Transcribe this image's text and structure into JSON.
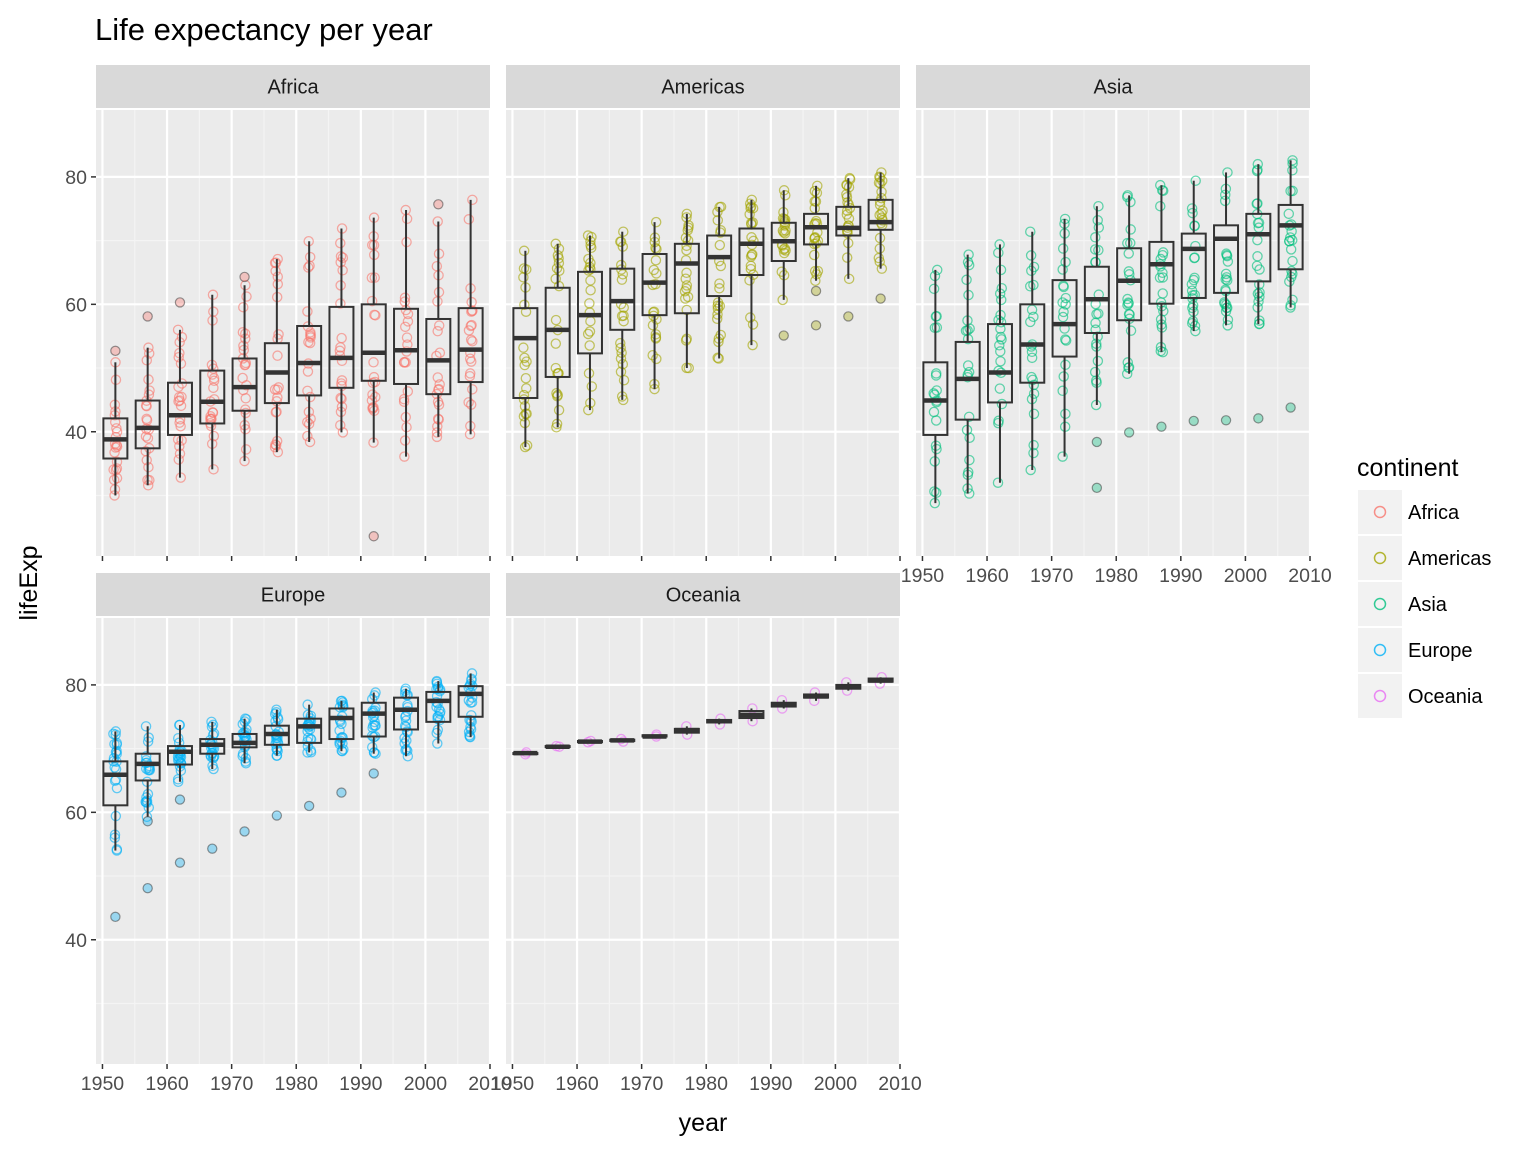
{
  "chart_data": {
    "type": "box",
    "title": "Life expectancy per year",
    "xlabel": "year",
    "ylabel": "lifeExp",
    "xlim": [
      1949,
      2010
    ],
    "ylim": [
      20.5,
      90.5
    ],
    "x_ticks": [
      1950,
      1960,
      1970,
      1980,
      1990,
      2000,
      2010
    ],
    "y_ticks": [
      40,
      60,
      80
    ],
    "grid": true,
    "legend": {
      "title": "continent",
      "position": "right",
      "entries": [
        "Africa",
        "Americas",
        "Asia",
        "Europe",
        "Oceania"
      ]
    },
    "colors": {
      "Africa": "#F8766D",
      "Americas": "#A3A500",
      "Asia": "#00BF7D",
      "Europe": "#00B0F6",
      "Oceania": "#E76BF3",
      "panel_bg": "#EBEBEB",
      "strip_bg": "#D9D9D9",
      "box_line": "#333333"
    },
    "years": [
      1952,
      1957,
      1962,
      1967,
      1972,
      1977,
      1982,
      1987,
      1992,
      1997,
      2002,
      2007
    ],
    "panels": [
      {
        "name": "Africa",
        "boxes": [
          {
            "year": 1952,
            "min": 30,
            "q1": 35.8,
            "median": 38.8,
            "q3": 42.1,
            "max": 50.9
          },
          {
            "year": 1957,
            "min": 31.6,
            "q1": 37.4,
            "median": 40.6,
            "q3": 44.9,
            "max": 53.2
          },
          {
            "year": 1962,
            "min": 32.8,
            "q1": 39.5,
            "median": 42.6,
            "q3": 47.7,
            "max": 56
          },
          {
            "year": 1967,
            "min": 34.1,
            "q1": 41.3,
            "median": 44.7,
            "q3": 49.6,
            "max": 61.5
          },
          {
            "year": 1972,
            "min": 35.4,
            "q1": 43.3,
            "median": 47,
            "q3": 51.5,
            "max": 63
          },
          {
            "year": 1977,
            "min": 36.8,
            "q1": 44.5,
            "median": 49.3,
            "q3": 53.9,
            "max": 67.1
          },
          {
            "year": 1982,
            "min": 38.4,
            "q1": 45.7,
            "median": 50.8,
            "q3": 56.6,
            "max": 69.9
          },
          {
            "year": 1987,
            "min": 39.9,
            "q1": 46.9,
            "median": 51.6,
            "q3": 59.6,
            "max": 71.9
          },
          {
            "year": 1992,
            "min": 38.3,
            "q1": 48,
            "median": 52.4,
            "q3": 60,
            "max": 73.6
          },
          {
            "year": 1997,
            "min": 36.1,
            "q1": 47.5,
            "median": 52.8,
            "q3": 59.3,
            "max": 74.8
          },
          {
            "year": 2002,
            "min": 39.2,
            "q1": 45.9,
            "median": 51.2,
            "q3": 57.7,
            "max": 73
          },
          {
            "year": 2007,
            "min": 39.6,
            "q1": 47.8,
            "median": 52.9,
            "q3": 59.4,
            "max": 76.4
          }
        ],
        "outliers": [
          {
            "year": 1952,
            "value": 52.7
          },
          {
            "year": 1957,
            "value": 58.1
          },
          {
            "year": 1962,
            "value": 60.3
          },
          {
            "year": 1972,
            "value": 64.3
          },
          {
            "year": 1992,
            "value": 23.6
          },
          {
            "year": 2002,
            "value": 75.7
          }
        ]
      },
      {
        "name": "Americas",
        "boxes": [
          {
            "year": 1952,
            "min": 37.6,
            "q1": 45.3,
            "median": 54.7,
            "q3": 59.4,
            "max": 68.4
          },
          {
            "year": 1957,
            "min": 40.7,
            "q1": 48.6,
            "median": 56,
            "q3": 62.6,
            "max": 69.5
          },
          {
            "year": 1962,
            "min": 43.4,
            "q1": 52.3,
            "median": 58.3,
            "q3": 65.1,
            "max": 70.8
          },
          {
            "year": 1967,
            "min": 45,
            "q1": 56,
            "median": 60.5,
            "q3": 65.6,
            "max": 71.4
          },
          {
            "year": 1972,
            "min": 46.7,
            "q1": 58.3,
            "median": 63.4,
            "q3": 67.9,
            "max": 72.9
          },
          {
            "year": 1977,
            "min": 50,
            "q1": 58.6,
            "median": 66.4,
            "q3": 69.5,
            "max": 74.2
          },
          {
            "year": 1982,
            "min": 51.5,
            "q1": 61.3,
            "median": 67.4,
            "q3": 70.8,
            "max": 75.3
          },
          {
            "year": 1987,
            "min": 53.6,
            "q1": 64.6,
            "median": 69.5,
            "q3": 71.9,
            "max": 76.4
          },
          {
            "year": 1992,
            "min": 60.7,
            "q1": 66.8,
            "median": 69.9,
            "q3": 72.8,
            "max": 77.9
          },
          {
            "year": 1997,
            "min": 63.7,
            "q1": 69.4,
            "median": 72.1,
            "q3": 74.2,
            "max": 78.6
          },
          {
            "year": 2002,
            "min": 64,
            "q1": 70.8,
            "median": 72,
            "q3": 75.3,
            "max": 79.8
          },
          {
            "year": 2007,
            "min": 65.6,
            "q1": 71.7,
            "median": 72.9,
            "q3": 76.4,
            "max": 80.7
          }
        ],
        "outliers": [
          {
            "year": 1992,
            "value": 55.1
          },
          {
            "year": 1997,
            "value": 56.7
          },
          {
            "year": 1997,
            "value": 62.1
          },
          {
            "year": 2002,
            "value": 58.1
          },
          {
            "year": 2007,
            "value": 60.9
          }
        ]
      },
      {
        "name": "Asia",
        "boxes": [
          {
            "year": 1952,
            "min": 28.8,
            "q1": 39.5,
            "median": 44.9,
            "q3": 50.9,
            "max": 65.4
          },
          {
            "year": 1957,
            "min": 30.3,
            "q1": 41.9,
            "median": 48.3,
            "q3": 54.1,
            "max": 67.8
          },
          {
            "year": 1962,
            "min": 32,
            "q1": 44.6,
            "median": 49.3,
            "q3": 56.9,
            "max": 69.4
          },
          {
            "year": 1967,
            "min": 34,
            "q1": 47.7,
            "median": 53.7,
            "q3": 60,
            "max": 71.4
          },
          {
            "year": 1972,
            "min": 36.1,
            "q1": 51.8,
            "median": 56.9,
            "q3": 63.8,
            "max": 73.4
          },
          {
            "year": 1977,
            "min": 44.2,
            "q1": 55.5,
            "median": 60.8,
            "q3": 65.9,
            "max": 75.4
          },
          {
            "year": 1982,
            "min": 49.1,
            "q1": 57.5,
            "median": 63.7,
            "q3": 68.8,
            "max": 77.1
          },
          {
            "year": 1987,
            "min": 52.5,
            "q1": 60.1,
            "median": 66.3,
            "q3": 69.8,
            "max": 78.7
          },
          {
            "year": 1992,
            "min": 55.8,
            "q1": 61,
            "median": 68.7,
            "q3": 71.1,
            "max": 79.4
          },
          {
            "year": 1997,
            "min": 56.7,
            "q1": 61.8,
            "median": 70.3,
            "q3": 72.4,
            "max": 80.7
          },
          {
            "year": 2002,
            "min": 56.9,
            "q1": 63.6,
            "median": 71,
            "q3": 74.2,
            "max": 82
          },
          {
            "year": 2007,
            "min": 59.5,
            "q1": 65.5,
            "median": 72.4,
            "q3": 75.6,
            "max": 82.6
          }
        ],
        "outliers": [
          {
            "year": 1977,
            "value": 31.2
          },
          {
            "year": 1977,
            "value": 38.4
          },
          {
            "year": 1982,
            "value": 39.9
          },
          {
            "year": 1987,
            "value": 40.8
          },
          {
            "year": 1992,
            "value": 41.7
          },
          {
            "year": 1997,
            "value": 41.8
          },
          {
            "year": 2002,
            "value": 42.1
          },
          {
            "year": 2007,
            "value": 43.8
          }
        ]
      },
      {
        "name": "Europe",
        "boxes": [
          {
            "year": 1952,
            "min": 54,
            "q1": 61.1,
            "median": 65.9,
            "q3": 68,
            "max": 72.7
          },
          {
            "year": 1957,
            "min": 59.3,
            "q1": 65,
            "median": 67.6,
            "q3": 69.2,
            "max": 73.5
          },
          {
            "year": 1962,
            "min": 64.8,
            "q1": 67.5,
            "median": 69.5,
            "q3": 70.4,
            "max": 73.7
          },
          {
            "year": 1967,
            "min": 66.8,
            "q1": 69.2,
            "median": 70.6,
            "q3": 71.5,
            "max": 74.2
          },
          {
            "year": 1972,
            "min": 67.7,
            "q1": 70.2,
            "median": 70.9,
            "q3": 72.3,
            "max": 74.7
          },
          {
            "year": 1977,
            "min": 68.9,
            "q1": 70.6,
            "median": 72.3,
            "q3": 73.6,
            "max": 76.1
          },
          {
            "year": 1982,
            "min": 69.4,
            "q1": 70.9,
            "median": 73.5,
            "q3": 74.7,
            "max": 76.9
          },
          {
            "year": 1987,
            "min": 69.6,
            "q1": 71.5,
            "median": 74.8,
            "q3": 76.3,
            "max": 77.5
          },
          {
            "year": 1992,
            "min": 69.2,
            "q1": 71.9,
            "median": 75.5,
            "q3": 77.2,
            "max": 78.8
          },
          {
            "year": 1997,
            "min": 68.8,
            "q1": 73,
            "median": 76.1,
            "q3": 78,
            "max": 79.4
          },
          {
            "year": 2002,
            "min": 70.8,
            "q1": 74.2,
            "median": 77.5,
            "q3": 78.9,
            "max": 80.6
          },
          {
            "year": 2007,
            "min": 71.8,
            "q1": 75,
            "median": 78.6,
            "q3": 79.8,
            "max": 81.8
          }
        ],
        "outliers": [
          {
            "year": 1952,
            "value": 43.6
          },
          {
            "year": 1957,
            "value": 48.1
          },
          {
            "year": 1957,
            "value": 58.6
          },
          {
            "year": 1962,
            "value": 52.1
          },
          {
            "year": 1962,
            "value": 62
          },
          {
            "year": 1967,
            "value": 54.3
          },
          {
            "year": 1972,
            "value": 57
          },
          {
            "year": 1977,
            "value": 59.5
          },
          {
            "year": 1982,
            "value": 61
          },
          {
            "year": 1987,
            "value": 63.1
          },
          {
            "year": 1992,
            "value": 66.1
          }
        ]
      },
      {
        "name": "Oceania",
        "boxes": [
          {
            "year": 1952,
            "min": 69.1,
            "q1": 69.2,
            "median": 69.3,
            "q3": 69.3,
            "max": 69.4
          },
          {
            "year": 1957,
            "min": 70.3,
            "q1": 70.3,
            "median": 70.3,
            "q3": 70.4,
            "max": 70.4
          },
          {
            "year": 1962,
            "min": 71,
            "q1": 71,
            "median": 71.1,
            "q3": 71.2,
            "max": 71.2
          },
          {
            "year": 1967,
            "min": 71.1,
            "q1": 71.2,
            "median": 71.3,
            "q3": 71.4,
            "max": 71.5
          },
          {
            "year": 1972,
            "min": 71.9,
            "q1": 71.9,
            "median": 71.9,
            "q3": 72.1,
            "max": 72.2
          },
          {
            "year": 1977,
            "min": 72.2,
            "q1": 72.5,
            "median": 72.9,
            "q3": 73.1,
            "max": 73.5
          },
          {
            "year": 1982,
            "min": 73.8,
            "q1": 74.1,
            "median": 74.3,
            "q3": 74.5,
            "max": 74.7
          },
          {
            "year": 1987,
            "min": 74.3,
            "q1": 74.8,
            "median": 75.3,
            "q3": 75.9,
            "max": 76.3
          },
          {
            "year": 1992,
            "min": 76.3,
            "q1": 76.6,
            "median": 76.9,
            "q3": 77.2,
            "max": 77.6
          },
          {
            "year": 1997,
            "min": 77.5,
            "q1": 78,
            "median": 78.2,
            "q3": 78.5,
            "max": 78.8
          },
          {
            "year": 2002,
            "min": 79.1,
            "q1": 79.4,
            "median": 79.7,
            "q3": 80,
            "max": 80.4
          },
          {
            "year": 2007,
            "min": 80.2,
            "q1": 80.5,
            "median": 80.7,
            "q3": 81,
            "max": 81.2
          }
        ],
        "outliers": []
      }
    ]
  }
}
